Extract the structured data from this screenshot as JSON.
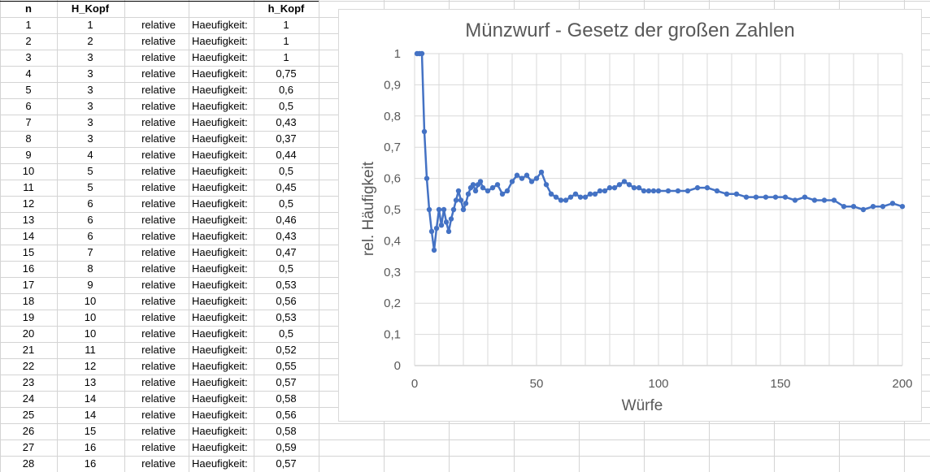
{
  "table": {
    "headers": [
      "n",
      "H_Kopf",
      "",
      "",
      "h_Kopf"
    ],
    "rows": [
      [
        "1",
        "1",
        "relative",
        "Haeufigkeit:",
        "1"
      ],
      [
        "2",
        "2",
        "relative",
        "Haeufigkeit:",
        "1"
      ],
      [
        "3",
        "3",
        "relative",
        "Haeufigkeit:",
        "1"
      ],
      [
        "4",
        "3",
        "relative",
        "Haeufigkeit:",
        "0,75"
      ],
      [
        "5",
        "3",
        "relative",
        "Haeufigkeit:",
        "0,6"
      ],
      [
        "6",
        "3",
        "relative",
        "Haeufigkeit:",
        "0,5"
      ],
      [
        "7",
        "3",
        "relative",
        "Haeufigkeit:",
        "0,43"
      ],
      [
        "8",
        "3",
        "relative",
        "Haeufigkeit:",
        "0,37"
      ],
      [
        "9",
        "4",
        "relative",
        "Haeufigkeit:",
        "0,44"
      ],
      [
        "10",
        "5",
        "relative",
        "Haeufigkeit:",
        "0,5"
      ],
      [
        "11",
        "5",
        "relative",
        "Haeufigkeit:",
        "0,45"
      ],
      [
        "12",
        "6",
        "relative",
        "Haeufigkeit:",
        "0,5"
      ],
      [
        "13",
        "6",
        "relative",
        "Haeufigkeit:",
        "0,46"
      ],
      [
        "14",
        "6",
        "relative",
        "Haeufigkeit:",
        "0,43"
      ],
      [
        "15",
        "7",
        "relative",
        "Haeufigkeit:",
        "0,47"
      ],
      [
        "16",
        "8",
        "relative",
        "Haeufigkeit:",
        "0,5"
      ],
      [
        "17",
        "9",
        "relative",
        "Haeufigkeit:",
        "0,53"
      ],
      [
        "18",
        "10",
        "relative",
        "Haeufigkeit:",
        "0,56"
      ],
      [
        "19",
        "10",
        "relative",
        "Haeufigkeit:",
        "0,53"
      ],
      [
        "20",
        "10",
        "relative",
        "Haeufigkeit:",
        "0,5"
      ],
      [
        "21",
        "11",
        "relative",
        "Haeufigkeit:",
        "0,52"
      ],
      [
        "22",
        "12",
        "relative",
        "Haeufigkeit:",
        "0,55"
      ],
      [
        "23",
        "13",
        "relative",
        "Haeufigkeit:",
        "0,57"
      ],
      [
        "24",
        "14",
        "relative",
        "Haeufigkeit:",
        "0,58"
      ],
      [
        "25",
        "14",
        "relative",
        "Haeufigkeit:",
        "0,56"
      ],
      [
        "26",
        "15",
        "relative",
        "Haeufigkeit:",
        "0,58"
      ],
      [
        "27",
        "16",
        "relative",
        "Haeufigkeit:",
        "0,59"
      ],
      [
        "28",
        "16",
        "relative",
        "Haeufigkeit:",
        "0,57"
      ]
    ]
  },
  "chart_data": {
    "type": "line",
    "title": "Münzwurf - Gesetz der großen Zahlen",
    "xlabel": "Würfe",
    "ylabel": "rel. Häufigkeit",
    "xlim": [
      0,
      200
    ],
    "ylim": [
      0,
      1
    ],
    "x_ticks": [
      "0",
      "50",
      "100",
      "150",
      "200"
    ],
    "y_ticks": [
      "0",
      "0,1",
      "0,2",
      "0,3",
      "0,4",
      "0,5",
      "0,6",
      "0,7",
      "0,8",
      "0,9",
      "1"
    ],
    "grid": true,
    "marker": "circle",
    "line_color": "#4472c4",
    "n": [
      1,
      2,
      3,
      4,
      5,
      6,
      7,
      8,
      9,
      10,
      11,
      12,
      13,
      14,
      15,
      16,
      17,
      18,
      19,
      20,
      21,
      22,
      23,
      24,
      25,
      26,
      27,
      28,
      30,
      32,
      34,
      36,
      38,
      40,
      42,
      44,
      46,
      48,
      50,
      52,
      54,
      56,
      58,
      60,
      62,
      64,
      66,
      68,
      70,
      72,
      74,
      76,
      78,
      80,
      82,
      84,
      86,
      88,
      90,
      92,
      94,
      96,
      98,
      100,
      104,
      108,
      112,
      116,
      120,
      124,
      128,
      132,
      136,
      140,
      144,
      148,
      152,
      156,
      160,
      164,
      168,
      172,
      176,
      180,
      184,
      188,
      192,
      196,
      200
    ],
    "values": [
      1,
      1,
      1,
      0.75,
      0.6,
      0.5,
      0.43,
      0.37,
      0.44,
      0.5,
      0.45,
      0.5,
      0.46,
      0.43,
      0.47,
      0.5,
      0.53,
      0.56,
      0.53,
      0.5,
      0.52,
      0.55,
      0.57,
      0.58,
      0.56,
      0.58,
      0.59,
      0.57,
      0.56,
      0.57,
      0.58,
      0.55,
      0.56,
      0.59,
      0.61,
      0.6,
      0.61,
      0.59,
      0.6,
      0.62,
      0.58,
      0.55,
      0.54,
      0.53,
      0.53,
      0.54,
      0.55,
      0.54,
      0.54,
      0.55,
      0.55,
      0.56,
      0.56,
      0.57,
      0.57,
      0.58,
      0.59,
      0.58,
      0.57,
      0.57,
      0.56,
      0.56,
      0.56,
      0.56,
      0.56,
      0.56,
      0.56,
      0.57,
      0.57,
      0.56,
      0.55,
      0.55,
      0.54,
      0.54,
      0.54,
      0.54,
      0.54,
      0.53,
      0.54,
      0.53,
      0.53,
      0.53,
      0.51,
      0.51,
      0.5,
      0.51,
      0.51,
      0.52,
      0.51
    ]
  }
}
